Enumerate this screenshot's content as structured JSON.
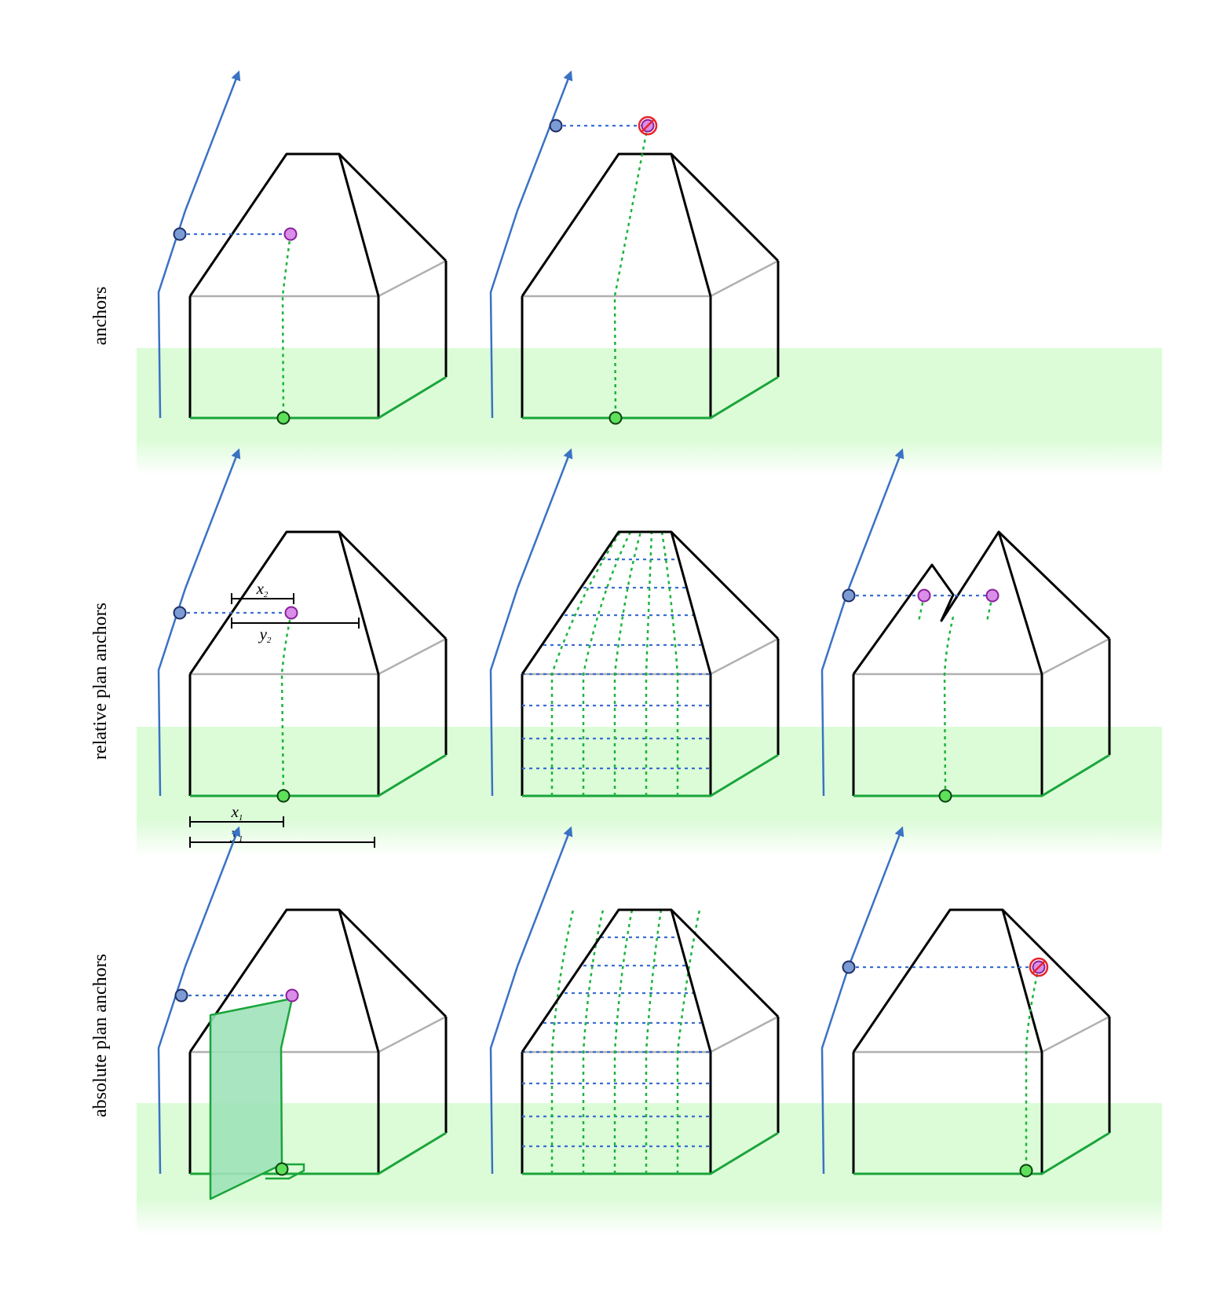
{
  "rows": [
    {
      "id": "anchors",
      "label": "anchors"
    },
    {
      "id": "relative-plan-anchors",
      "label": "relative plan anchors"
    },
    {
      "id": "absolute-plan-anchors",
      "label": "absolute plan anchors"
    }
  ],
  "dimension_labels": {
    "x2": {
      "base": "x",
      "sub": "2"
    },
    "y2": {
      "base": "y",
      "sub": "2"
    },
    "x1": {
      "base": "x",
      "sub": "1"
    },
    "y1": {
      "base": "y",
      "sub": "1"
    }
  },
  "colors": {
    "ground_band": "#dcfcd8",
    "outline": "#000000",
    "eave": "#b0b0b0",
    "ground_edge": "#1aa53a",
    "profile_guide": "#3a72c4",
    "height_anchor": "#7b9bd4",
    "plan_anchor": "#d98ee8",
    "ground_anchor": "#5fe05a",
    "invalid_marker": "#e8232b",
    "anchor_region": "#9fe2b9"
  },
  "icons": {
    "invalid_marker": "prohibited-icon",
    "guide_arrow": "arrow-up-icon"
  }
}
